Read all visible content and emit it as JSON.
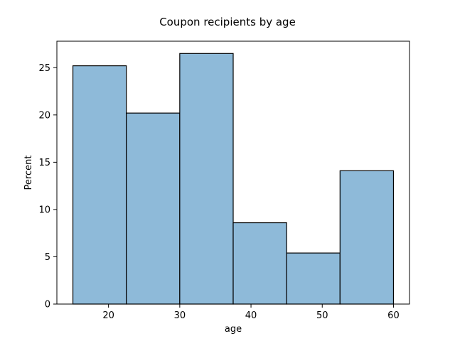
{
  "chart_data": {
    "type": "bar",
    "title": "Coupon recipients by age",
    "xlabel": "age",
    "ylabel": "Percent",
    "bins": [
      {
        "x0": 15,
        "x1": 22.5,
        "value": 25.2
      },
      {
        "x0": 22.5,
        "x1": 30,
        "value": 20.2
      },
      {
        "x0": 30,
        "x1": 37.5,
        "value": 26.5
      },
      {
        "x0": 37.5,
        "x1": 45,
        "value": 8.6
      },
      {
        "x0": 45,
        "x1": 52.5,
        "value": 5.4
      },
      {
        "x0": 52.5,
        "x1": 60,
        "value": 14.1
      }
    ],
    "xlim": [
      12.75,
      62.25
    ],
    "ylim": [
      0,
      27.8
    ],
    "xticks": [
      20,
      30,
      40,
      50,
      60
    ],
    "yticks": [
      0,
      5,
      10,
      15,
      20,
      25
    ],
    "bar_color": "#8ebad9",
    "edge_color": "#000000",
    "grid": false
  }
}
